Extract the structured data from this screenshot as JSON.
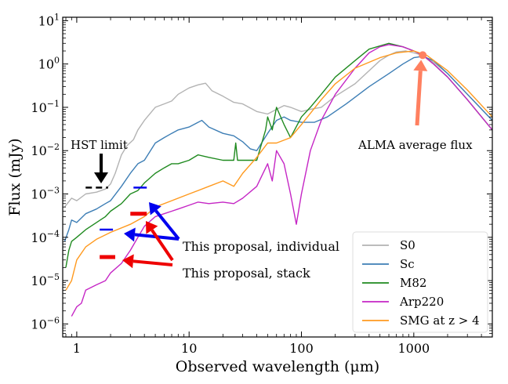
{
  "chart_data": {
    "type": "line",
    "xlabel": "Observed wavelength (μm)",
    "ylabel": "Flux (mJy)",
    "xscale": "log",
    "yscale": "log",
    "xlim": [
      0.75,
      5000
    ],
    "ylim": [
      5e-07,
      12
    ],
    "x_ticks": [
      {
        "value": 1,
        "label": "1"
      },
      {
        "value": 10,
        "label": "10"
      },
      {
        "value": 100,
        "label": "100"
      },
      {
        "value": 1000,
        "label": "1000"
      }
    ],
    "y_ticks": [
      {
        "value": 1e-06,
        "base": "10",
        "exp": "−6"
      },
      {
        "value": 1e-05,
        "base": "10",
        "exp": "−5"
      },
      {
        "value": 0.0001,
        "base": "10",
        "exp": "−4"
      },
      {
        "value": 0.001,
        "base": "10",
        "exp": "−3"
      },
      {
        "value": 0.01,
        "base": "10",
        "exp": "−2"
      },
      {
        "value": 0.1,
        "base": "10",
        "exp": "−1"
      },
      {
        "value": 1,
        "base": "10",
        "exp": "0"
      },
      {
        "value": 10,
        "base": "10",
        "exp": "1"
      }
    ],
    "legend": {
      "position": "bottom-right",
      "entries": [
        {
          "label": "S0",
          "color": "#b3b3b3"
        },
        {
          "label": "Sc",
          "color": "#3d7eb5"
        },
        {
          "label": "M82",
          "color": "#1f8a1f"
        },
        {
          "label": "Arp220",
          "color": "#c526c5"
        },
        {
          "label": "SMG at z > 4",
          "color": "#ff9a1f"
        }
      ]
    },
    "series": [
      {
        "name": "S0",
        "color": "#b3b3b3",
        "points": [
          [
            0.78,
            0.0005
          ],
          [
            0.9,
            0.0008
          ],
          [
            1.0,
            0.0007
          ],
          [
            1.2,
            0.001
          ],
          [
            1.5,
            0.0011
          ],
          [
            1.8,
            0.0013
          ],
          [
            2.0,
            0.0017
          ],
          [
            2.2,
            0.003
          ],
          [
            2.5,
            0.008
          ],
          [
            2.8,
            0.013
          ],
          [
            3.2,
            0.018
          ],
          [
            3.5,
            0.03
          ],
          [
            4,
            0.05
          ],
          [
            5,
            0.1
          ],
          [
            6,
            0.12
          ],
          [
            7,
            0.14
          ],
          [
            8,
            0.2
          ],
          [
            10,
            0.28
          ],
          [
            12,
            0.33
          ],
          [
            14,
            0.36
          ],
          [
            16,
            0.24
          ],
          [
            20,
            0.18
          ],
          [
            25,
            0.13
          ],
          [
            30,
            0.12
          ],
          [
            40,
            0.08
          ],
          [
            50,
            0.07
          ],
          [
            60,
            0.09
          ],
          [
            70,
            0.11
          ],
          [
            80,
            0.1
          ],
          [
            100,
            0.08
          ],
          [
            120,
            0.09
          ],
          [
            150,
            0.1
          ],
          [
            200,
            0.18
          ],
          [
            300,
            0.35
          ],
          [
            400,
            0.7
          ],
          [
            500,
            1.2
          ],
          [
            600,
            1.6
          ],
          [
            700,
            1.9
          ],
          [
            850,
            2.0
          ],
          [
            1000,
            1.8
          ],
          [
            1200,
            1.6
          ],
          [
            1500,
            1.1
          ],
          [
            2000,
            0.6
          ],
          [
            3000,
            0.2
          ],
          [
            5000,
            0.05
          ]
        ]
      },
      {
        "name": "Sc",
        "color": "#3d7eb5",
        "points": [
          [
            0.78,
            8e-05
          ],
          [
            0.85,
            0.00015
          ],
          [
            0.9,
            0.00025
          ],
          [
            1.0,
            0.00022
          ],
          [
            1.2,
            0.00035
          ],
          [
            1.5,
            0.00045
          ],
          [
            1.8,
            0.0006
          ],
          [
            2.0,
            0.0007
          ],
          [
            2.5,
            0.0015
          ],
          [
            3,
            0.003
          ],
          [
            3.5,
            0.005
          ],
          [
            4,
            0.006
          ],
          [
            5,
            0.015
          ],
          [
            6,
            0.02
          ],
          [
            7,
            0.025
          ],
          [
            8,
            0.03
          ],
          [
            10,
            0.035
          ],
          [
            12,
            0.045
          ],
          [
            13,
            0.05
          ],
          [
            15,
            0.035
          ],
          [
            20,
            0.025
          ],
          [
            25,
            0.022
          ],
          [
            30,
            0.016
          ],
          [
            35,
            0.011
          ],
          [
            40,
            0.01
          ],
          [
            50,
            0.025
          ],
          [
            60,
            0.05
          ],
          [
            70,
            0.06
          ],
          [
            80,
            0.05
          ],
          [
            100,
            0.045
          ],
          [
            130,
            0.045
          ],
          [
            170,
            0.06
          ],
          [
            250,
            0.12
          ],
          [
            400,
            0.3
          ],
          [
            600,
            0.6
          ],
          [
            800,
            1.0
          ],
          [
            1000,
            1.4
          ],
          [
            1200,
            1.5
          ],
          [
            1500,
            1.2
          ],
          [
            2000,
            0.6
          ],
          [
            3000,
            0.2
          ],
          [
            5000,
            0.05
          ]
        ]
      },
      {
        "name": "M82",
        "color": "#1f8a1f",
        "points": [
          [
            0.8,
            2e-05
          ],
          [
            0.85,
            5e-05
          ],
          [
            0.9,
            8e-05
          ],
          [
            1.0,
            0.0001
          ],
          [
            1.2,
            0.00015
          ],
          [
            1.5,
            0.00022
          ],
          [
            1.8,
            0.0003
          ],
          [
            2.0,
            0.0004
          ],
          [
            2.5,
            0.0006
          ],
          [
            3,
            0.001
          ],
          [
            3.5,
            0.0012
          ],
          [
            4,
            0.0018
          ],
          [
            5,
            0.003
          ],
          [
            6,
            0.004
          ],
          [
            7,
            0.005
          ],
          [
            8,
            0.005
          ],
          [
            10,
            0.006
          ],
          [
            12,
            0.008
          ],
          [
            15,
            0.007
          ],
          [
            20,
            0.006
          ],
          [
            25,
            0.006
          ],
          [
            26,
            0.015
          ],
          [
            27,
            0.006
          ],
          [
            30,
            0.006
          ],
          [
            40,
            0.006
          ],
          [
            48,
            0.03
          ],
          [
            50,
            0.06
          ],
          [
            55,
            0.03
          ],
          [
            60,
            0.1
          ],
          [
            70,
            0.04
          ],
          [
            80,
            0.02
          ],
          [
            100,
            0.06
          ],
          [
            120,
            0.1
          ],
          [
            150,
            0.2
          ],
          [
            200,
            0.5
          ],
          [
            300,
            1.2
          ],
          [
            400,
            2.2
          ],
          [
            600,
            3.0
          ],
          [
            800,
            2.5
          ],
          [
            1000,
            2.0
          ],
          [
            1200,
            1.6
          ],
          [
            1500,
            1.0
          ],
          [
            2000,
            0.5
          ],
          [
            3000,
            0.15
          ],
          [
            5000,
            0.03
          ]
        ]
      },
      {
        "name": "Arp220",
        "color": "#c526c5",
        "points": [
          [
            0.9,
            1.5e-06
          ],
          [
            1.0,
            2.5e-06
          ],
          [
            1.1,
            3e-06
          ],
          [
            1.2,
            6e-06
          ],
          [
            1.5,
            8e-06
          ],
          [
            1.8,
            1e-05
          ],
          [
            2.0,
            1.5e-05
          ],
          [
            2.5,
            2.5e-05
          ],
          [
            3,
            5e-05
          ],
          [
            3.5,
            0.0001
          ],
          [
            4,
            0.00018
          ],
          [
            5,
            0.0003
          ],
          [
            6,
            0.00035
          ],
          [
            7,
            0.0004
          ],
          [
            8,
            0.00045
          ],
          [
            10,
            0.00055
          ],
          [
            12,
            0.00065
          ],
          [
            15,
            0.0006
          ],
          [
            20,
            0.00065
          ],
          [
            25,
            0.0006
          ],
          [
            30,
            0.0008
          ],
          [
            40,
            0.0015
          ],
          [
            50,
            0.005
          ],
          [
            55,
            0.002
          ],
          [
            60,
            0.01
          ],
          [
            70,
            0.005
          ],
          [
            80,
            0.001
          ],
          [
            90,
            0.0002
          ],
          [
            100,
            0.001
          ],
          [
            120,
            0.01
          ],
          [
            150,
            0.05
          ],
          [
            200,
            0.2
          ],
          [
            300,
            0.8
          ],
          [
            400,
            1.8
          ],
          [
            500,
            2.5
          ],
          [
            600,
            2.8
          ],
          [
            800,
            2.5
          ],
          [
            1000,
            2.0
          ],
          [
            1200,
            1.6
          ],
          [
            1500,
            1.0
          ],
          [
            2000,
            0.5
          ],
          [
            3000,
            0.15
          ],
          [
            5000,
            0.03
          ]
        ]
      },
      {
        "name": "SMG at z > 4",
        "color": "#ff9a1f",
        "points": [
          [
            0.8,
            6e-06
          ],
          [
            0.9,
            1e-05
          ],
          [
            1.0,
            3e-05
          ],
          [
            1.2,
            6e-05
          ],
          [
            1.5,
            9e-05
          ],
          [
            2.0,
            0.00013
          ],
          [
            3,
            0.0002
          ],
          [
            4,
            0.0003
          ],
          [
            5,
            0.0005
          ],
          [
            7,
            0.0007
          ],
          [
            10,
            0.001
          ],
          [
            15,
            0.0015
          ],
          [
            20,
            0.002
          ],
          [
            25,
            0.0015
          ],
          [
            30,
            0.003
          ],
          [
            40,
            0.007
          ],
          [
            50,
            0.015
          ],
          [
            60,
            0.015
          ],
          [
            80,
            0.02
          ],
          [
            100,
            0.04
          ],
          [
            150,
            0.15
          ],
          [
            200,
            0.35
          ],
          [
            300,
            0.8
          ],
          [
            500,
            1.4
          ],
          [
            700,
            1.8
          ],
          [
            1000,
            2.0
          ],
          [
            1300,
            1.6
          ],
          [
            2000,
            0.7
          ],
          [
            3000,
            0.25
          ],
          [
            5000,
            0.06
          ]
        ]
      }
    ],
    "annotations": [
      {
        "text": "HST limit",
        "color": "#000000"
      },
      {
        "text": "This proposal, individual",
        "color": "#0000ee"
      },
      {
        "text": "This proposal, stack",
        "color": "#ee0000"
      },
      {
        "text": "ALMA average flux",
        "color": "#ff8060",
        "point": [
          1200,
          1.6
        ]
      }
    ],
    "limits": [
      {
        "name": "hst-limit",
        "color": "#000000",
        "x": [
          1.2,
          1.9
        ],
        "y": 0.0014
      },
      {
        "name": "individual-limit-1",
        "color": "#0000ee",
        "x": [
          3.2,
          4.2
        ],
        "y": 0.0014
      },
      {
        "name": "individual-limit-2",
        "color": "#0000ee",
        "x": [
          1.6,
          2.1
        ],
        "y": 0.00015
      },
      {
        "name": "stack-limit-1",
        "color": "#ee0000",
        "x": [
          3.0,
          4.2
        ],
        "y": 0.00035
      },
      {
        "name": "stack-limit-2",
        "color": "#ee0000",
        "x": [
          1.6,
          2.2
        ],
        "y": 3.5e-05
      }
    ]
  }
}
